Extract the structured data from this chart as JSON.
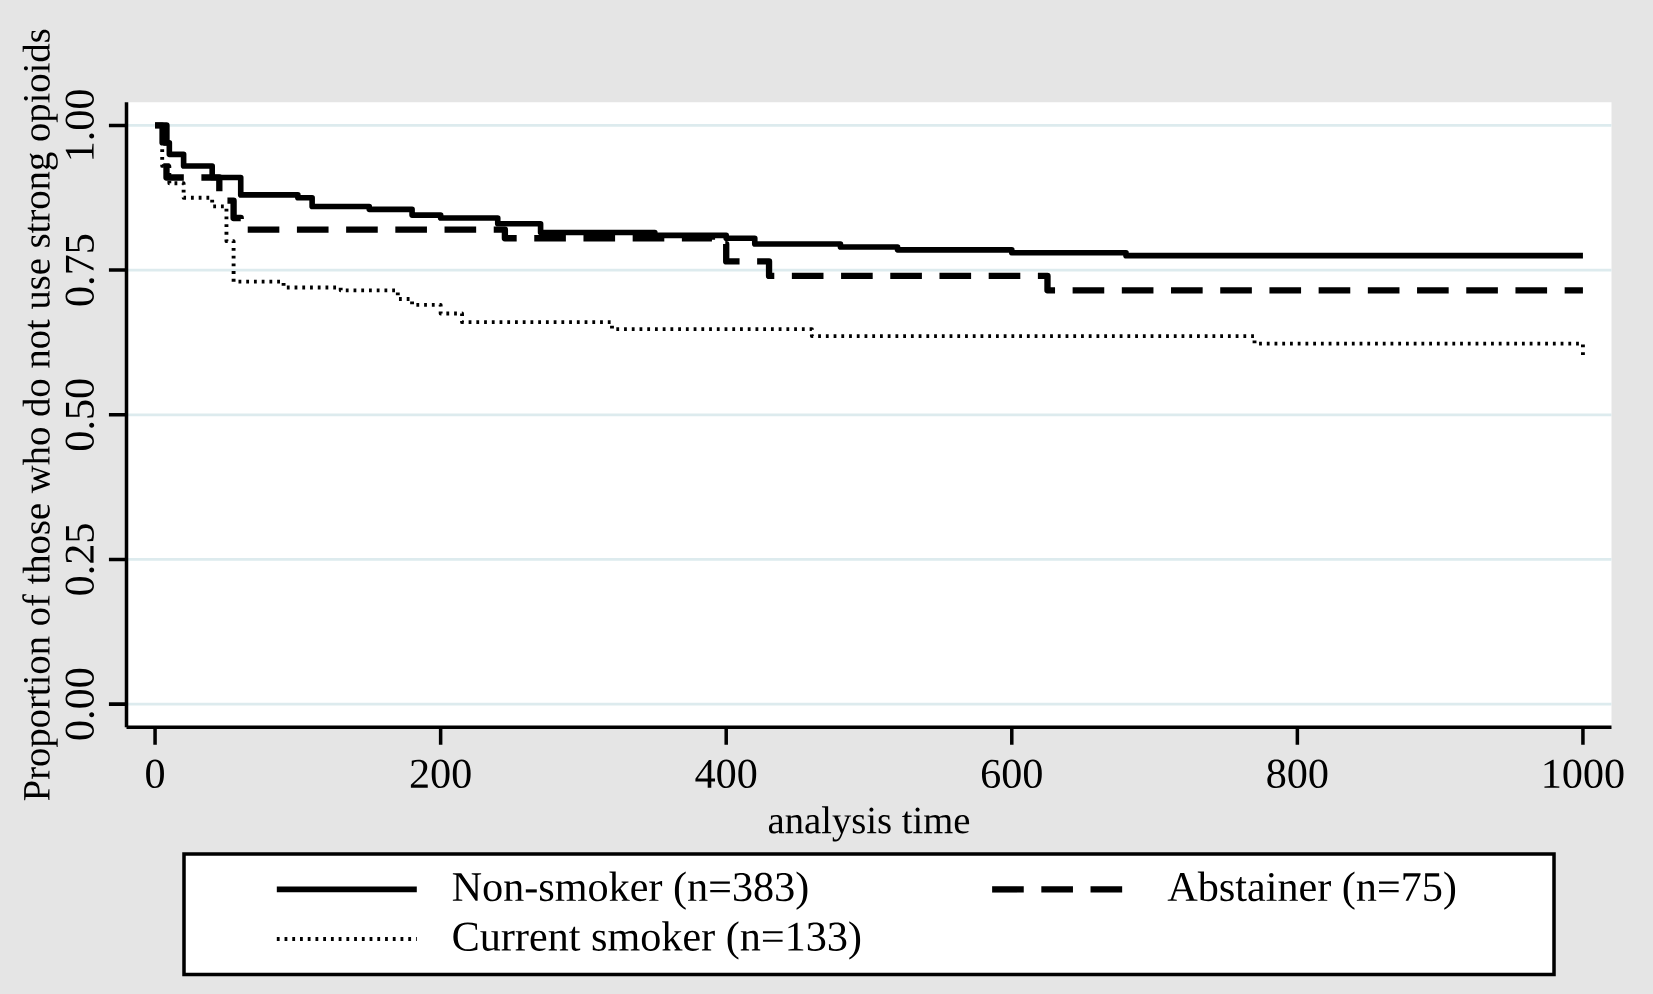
{
  "chart_data": {
    "type": "step",
    "xlabel": "analysis time",
    "ylabel": "Proportion of those who do not use strong opioids",
    "xlim": [
      -20,
      1020
    ],
    "ylim": [
      -0.04,
      1.04
    ],
    "xticks": [
      0,
      200,
      400,
      600,
      800,
      1000
    ],
    "yticks": [
      {
        "value": 0,
        "label": "0.00"
      },
      {
        "value": 0.25,
        "label": "0.25"
      },
      {
        "value": 0.5,
        "label": "0.50"
      },
      {
        "value": 0.75,
        "label": "0.75"
      },
      {
        "value": 1,
        "label": "1.00"
      }
    ],
    "grid": "y",
    "legend": "bottom",
    "series": [
      {
        "name": "Non-smoker (n=383)",
        "color": "#000000",
        "line_style": "solid",
        "x": [
          0,
          5,
          10,
          20,
          40,
          60,
          100,
          110,
          150,
          180,
          200,
          240,
          270,
          350,
          400,
          420,
          480,
          520,
          600,
          680,
          1000
        ],
        "values": [
          1.0,
          0.97,
          0.95,
          0.93,
          0.91,
          0.88,
          0.875,
          0.86,
          0.855,
          0.845,
          0.84,
          0.83,
          0.815,
          0.81,
          0.805,
          0.795,
          0.79,
          0.785,
          0.78,
          0.775,
          0.775
        ]
      },
      {
        "name": "Abstainer (n=75)",
        "color": "#000000",
        "line_style": "dashed",
        "x": [
          0,
          8,
          45,
          55,
          60,
          245,
          390,
          400,
          430,
          625,
          1000
        ],
        "values": [
          1.0,
          0.91,
          0.87,
          0.84,
          0.82,
          0.805,
          0.795,
          0.765,
          0.74,
          0.715,
          0.715
        ]
      },
      {
        "name": "Current smoker (n=133)",
        "color": "#000000",
        "line_style": "dotted",
        "x": [
          0,
          5,
          10,
          20,
          40,
          50,
          55,
          90,
          130,
          170,
          180,
          200,
          215,
          320,
          460,
          770,
          1000,
          1000
        ],
        "values": [
          1.0,
          0.93,
          0.9,
          0.875,
          0.86,
          0.8,
          0.73,
          0.72,
          0.715,
          0.7,
          0.69,
          0.675,
          0.66,
          0.648,
          0.636,
          0.623,
          0.62,
          0.6
        ]
      }
    ]
  }
}
